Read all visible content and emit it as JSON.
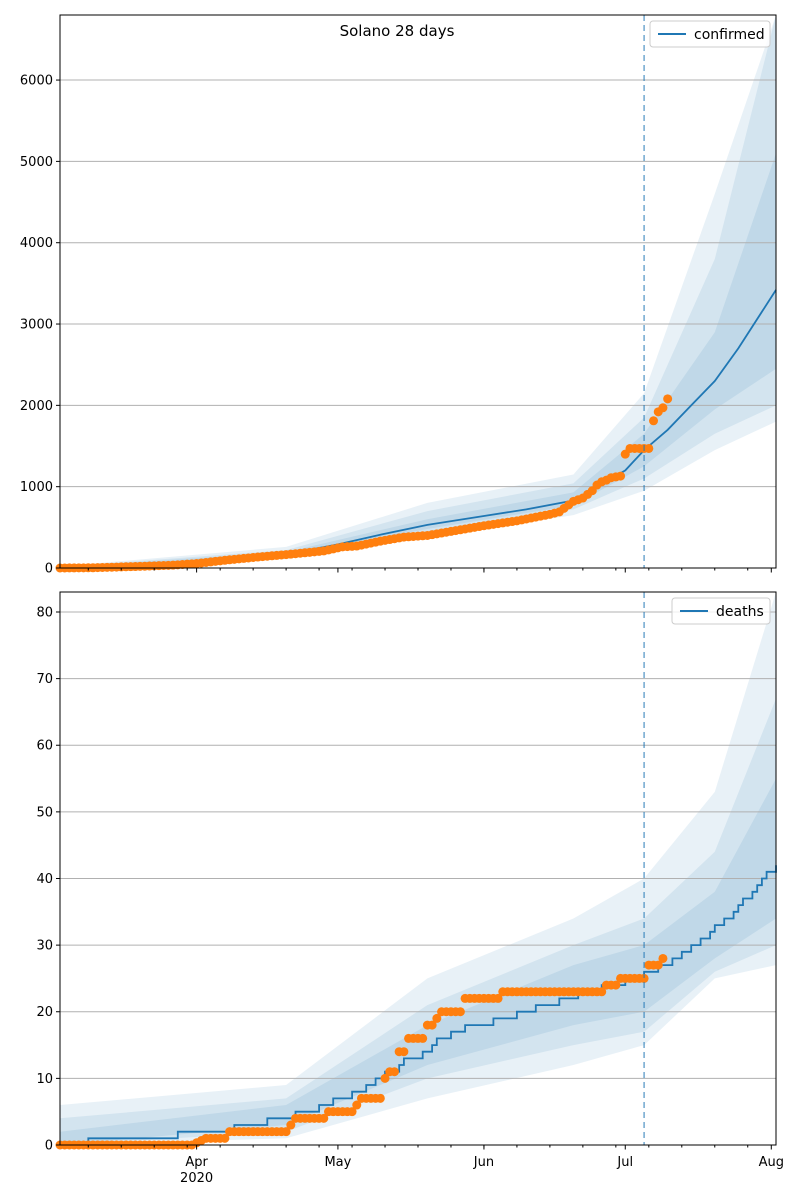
{
  "chart_data": [
    {
      "type": "line",
      "title": "Solano 28 days",
      "xlabel": "",
      "ylabel": "",
      "x_range": [
        "2020-03-03",
        "2020-08-02"
      ],
      "ylim": [
        0,
        6800
      ],
      "y_ticks": [
        0,
        1000,
        2000,
        3000,
        4000,
        5000,
        6000
      ],
      "x_ticks": [
        {
          "date": "2020-04-01",
          "label": "Apr",
          "sub": "2020"
        },
        {
          "date": "2020-05-01",
          "label": "May",
          "sub": ""
        },
        {
          "date": "2020-06-01",
          "label": "Jun",
          "sub": ""
        },
        {
          "date": "2020-07-01",
          "label": "Jul",
          "sub": ""
        },
        {
          "date": "2020-08-01",
          "label": "Aug",
          "sub": ""
        }
      ],
      "grid": "horizontal",
      "legend_position": "top-right",
      "forecast_start": "2020-07-05",
      "series": [
        {
          "name": "confirmed",
          "kind": "model-median",
          "color": "#1f77b4",
          "points": [
            [
              "2020-03-03",
              5
            ],
            [
              "2020-03-15",
              12
            ],
            [
              "2020-03-25",
              30
            ],
            [
              "2020-04-01",
              60
            ],
            [
              "2020-04-10",
              110
            ],
            [
              "2020-04-20",
              170
            ],
            [
              "2020-05-01",
              290
            ],
            [
              "2020-05-10",
              410
            ],
            [
              "2020-05-20",
              530
            ],
            [
              "2020-06-01",
              640
            ],
            [
              "2020-06-10",
              720
            ],
            [
              "2020-06-20",
              830
            ],
            [
              "2020-07-01",
              1200
            ],
            [
              "2020-07-05",
              1450
            ],
            [
              "2020-07-10",
              1700
            ],
            [
              "2020-07-15",
              2000
            ],
            [
              "2020-07-20",
              2300
            ],
            [
              "2020-07-25",
              2700
            ],
            [
              "2020-08-02",
              3420
            ]
          ]
        },
        {
          "name": "",
          "kind": "observed",
          "color": "#ff7f0e",
          "points": [
            [
              "2020-03-03",
              0
            ],
            [
              "2020-03-10",
              3
            ],
            [
              "2020-03-20",
              20
            ],
            [
              "2020-03-27",
              35
            ],
            [
              "2020-04-01",
              55
            ],
            [
              "2020-04-07",
              95
            ],
            [
              "2020-04-14",
              135
            ],
            [
              "2020-04-21",
              170
            ],
            [
              "2020-04-28",
              210
            ],
            [
              "2020-05-02",
              260
            ],
            [
              "2020-05-05",
              270
            ],
            [
              "2020-05-10",
              330
            ],
            [
              "2020-05-15",
              380
            ],
            [
              "2020-05-20",
              400
            ],
            [
              "2020-05-25",
              450
            ],
            [
              "2020-06-01",
              520
            ],
            [
              "2020-06-08",
              580
            ],
            [
              "2020-06-15",
              660
            ],
            [
              "2020-06-17",
              690
            ],
            [
              "2020-06-20",
              820
            ],
            [
              "2020-06-22",
              860
            ],
            [
              "2020-06-24",
              950
            ],
            [
              "2020-06-25",
              1020
            ],
            [
              "2020-06-26",
              1060
            ],
            [
              "2020-06-27",
              1080
            ],
            [
              "2020-06-28",
              1110
            ],
            [
              "2020-06-30",
              1130
            ],
            [
              "2020-07-01",
              1400
            ],
            [
              "2020-07-02",
              1470
            ],
            [
              "2020-07-03",
              1470
            ],
            [
              "2020-07-04",
              1470
            ],
            [
              "2020-07-05",
              1470
            ],
            [
              "2020-07-06",
              1470
            ],
            [
              "2020-07-07",
              1810
            ],
            [
              "2020-07-08",
              1920
            ],
            [
              "2020-07-09",
              1970
            ],
            [
              "2020-07-10",
              2080
            ]
          ]
        }
      ],
      "bands": [
        {
          "opacity": 0.1,
          "lower": [
            [
              "2020-03-03",
              0
            ],
            [
              "2020-04-20",
              110
            ],
            [
              "2020-05-20",
              380
            ],
            [
              "2020-06-20",
              650
            ],
            [
              "2020-07-05",
              950
            ],
            [
              "2020-07-20",
              1450
            ],
            [
              "2020-08-02",
              1800
            ]
          ],
          "upper": [
            [
              "2020-03-03",
              20
            ],
            [
              "2020-04-20",
              260
            ],
            [
              "2020-05-20",
              800
            ],
            [
              "2020-06-20",
              1150
            ],
            [
              "2020-07-05",
              2150
            ],
            [
              "2020-07-20",
              4600
            ],
            [
              "2020-08-02",
              6900
            ]
          ]
        },
        {
          "opacity": 0.1,
          "lower": [
            [
              "2020-03-03",
              0
            ],
            [
              "2020-04-20",
              130
            ],
            [
              "2020-05-20",
              430
            ],
            [
              "2020-06-20",
              720
            ],
            [
              "2020-07-05",
              1100
            ],
            [
              "2020-07-20",
              1650
            ],
            [
              "2020-08-02",
              2000
            ]
          ],
          "upper": [
            [
              "2020-03-03",
              15
            ],
            [
              "2020-04-20",
              220
            ],
            [
              "2020-05-20",
              700
            ],
            [
              "2020-06-20",
              1040
            ],
            [
              "2020-07-05",
              1850
            ],
            [
              "2020-07-20",
              3800
            ],
            [
              "2020-08-02",
              6900
            ]
          ]
        },
        {
          "opacity": 0.1,
          "lower": [
            [
              "2020-03-03",
              0
            ],
            [
              "2020-04-20",
              150
            ],
            [
              "2020-05-20",
              480
            ],
            [
              "2020-06-20",
              770
            ],
            [
              "2020-07-05",
              1250
            ],
            [
              "2020-07-20",
              1950
            ],
            [
              "2020-08-02",
              2450
            ]
          ],
          "upper": [
            [
              "2020-03-03",
              10
            ],
            [
              "2020-04-20",
              195
            ],
            [
              "2020-05-20",
              600
            ],
            [
              "2020-06-20",
              930
            ],
            [
              "2020-07-05",
              1650
            ],
            [
              "2020-07-20",
              2900
            ],
            [
              "2020-08-02",
              5100
            ]
          ]
        }
      ]
    },
    {
      "type": "line",
      "title": "",
      "xlabel": "",
      "ylabel": "",
      "x_range": [
        "2020-03-03",
        "2020-08-02"
      ],
      "ylim": [
        0,
        83
      ],
      "y_ticks": [
        0,
        10,
        20,
        30,
        40,
        50,
        60,
        70,
        80
      ],
      "x_ticks": [
        {
          "date": "2020-04-01",
          "label": "Apr",
          "sub": "2020"
        },
        {
          "date": "2020-05-01",
          "label": "May",
          "sub": ""
        },
        {
          "date": "2020-06-01",
          "label": "Jun",
          "sub": ""
        },
        {
          "date": "2020-07-01",
          "label": "Jul",
          "sub": ""
        },
        {
          "date": "2020-08-01",
          "label": "Aug",
          "sub": ""
        }
      ],
      "grid": "horizontal",
      "legend_position": "top-right",
      "forecast_start": "2020-07-05",
      "series": [
        {
          "name": "deaths",
          "kind": "model-median",
          "color": "#1f77b4",
          "step": true,
          "points": [
            [
              "2020-03-03",
              0
            ],
            [
              "2020-03-09",
              1
            ],
            [
              "2020-03-28",
              2
            ],
            [
              "2020-04-09",
              3
            ],
            [
              "2020-04-16",
              4
            ],
            [
              "2020-04-22",
              5
            ],
            [
              "2020-04-27",
              6
            ],
            [
              "2020-04-30",
              7
            ],
            [
              "2020-05-04",
              8
            ],
            [
              "2020-05-07",
              9
            ],
            [
              "2020-05-09",
              10
            ],
            [
              "2020-05-11",
              11
            ],
            [
              "2020-05-14",
              12
            ],
            [
              "2020-05-15",
              13
            ],
            [
              "2020-05-19",
              14
            ],
            [
              "2020-05-21",
              15
            ],
            [
              "2020-05-22",
              16
            ],
            [
              "2020-05-25",
              17
            ],
            [
              "2020-05-28",
              18
            ],
            [
              "2020-06-03",
              19
            ],
            [
              "2020-06-08",
              20
            ],
            [
              "2020-06-12",
              21
            ],
            [
              "2020-06-17",
              22
            ],
            [
              "2020-06-21",
              23
            ],
            [
              "2020-06-26",
              24
            ],
            [
              "2020-07-01",
              25
            ],
            [
              "2020-07-05",
              26
            ],
            [
              "2020-07-08",
              27
            ],
            [
              "2020-07-11",
              28
            ],
            [
              "2020-07-13",
              29
            ],
            [
              "2020-07-15",
              30
            ],
            [
              "2020-07-17",
              31
            ],
            [
              "2020-07-19",
              32
            ],
            [
              "2020-07-20",
              33
            ],
            [
              "2020-07-22",
              34
            ],
            [
              "2020-07-24",
              35
            ],
            [
              "2020-07-25",
              36
            ],
            [
              "2020-07-26",
              37
            ],
            [
              "2020-07-28",
              38
            ],
            [
              "2020-07-29",
              39
            ],
            [
              "2020-07-30",
              40
            ],
            [
              "2020-07-31",
              41
            ],
            [
              "2020-08-02",
              42
            ]
          ]
        },
        {
          "name": "",
          "kind": "observed",
          "color": "#ff7f0e",
          "points": [
            [
              "2020-03-03",
              0
            ],
            [
              "2020-03-20",
              0
            ],
            [
              "2020-03-31",
              0
            ],
            [
              "2020-04-03",
              1
            ],
            [
              "2020-04-07",
              1
            ],
            [
              "2020-04-08",
              2
            ],
            [
              "2020-04-20",
              2
            ],
            [
              "2020-04-21",
              3
            ],
            [
              "2020-04-22",
              4
            ],
            [
              "2020-04-28",
              4
            ],
            [
              "2020-04-29",
              5
            ],
            [
              "2020-05-04",
              5
            ],
            [
              "2020-05-05",
              6
            ],
            [
              "2020-05-06",
              7
            ],
            [
              "2020-05-10",
              7
            ],
            [
              "2020-05-11",
              10
            ],
            [
              "2020-05-12",
              11
            ],
            [
              "2020-05-13",
              11
            ],
            [
              "2020-05-14",
              14
            ],
            [
              "2020-05-15",
              14
            ],
            [
              "2020-05-16",
              16
            ],
            [
              "2020-05-19",
              16
            ],
            [
              "2020-05-20",
              18
            ],
            [
              "2020-05-21",
              18
            ],
            [
              "2020-05-22",
              19
            ],
            [
              "2020-05-23",
              20
            ],
            [
              "2020-05-27",
              20
            ],
            [
              "2020-05-28",
              22
            ],
            [
              "2020-06-04",
              22
            ],
            [
              "2020-06-05",
              23
            ],
            [
              "2020-06-26",
              23
            ],
            [
              "2020-06-27",
              24
            ],
            [
              "2020-06-29",
              24
            ],
            [
              "2020-06-30",
              25
            ],
            [
              "2020-07-05",
              25
            ],
            [
              "2020-07-06",
              27
            ],
            [
              "2020-07-08",
              27
            ],
            [
              "2020-07-09",
              28
            ]
          ]
        }
      ],
      "bands": [
        {
          "opacity": 0.1,
          "lower": [
            [
              "2020-03-03",
              0
            ],
            [
              "2020-04-20",
              1
            ],
            [
              "2020-05-20",
              7
            ],
            [
              "2020-06-20",
              12
            ],
            [
              "2020-07-05",
              15
            ],
            [
              "2020-07-20",
              25
            ],
            [
              "2020-08-02",
              27
            ]
          ],
          "upper": [
            [
              "2020-03-03",
              6
            ],
            [
              "2020-04-20",
              9
            ],
            [
              "2020-05-20",
              25
            ],
            [
              "2020-06-20",
              34
            ],
            [
              "2020-07-05",
              40
            ],
            [
              "2020-07-20",
              53
            ],
            [
              "2020-08-02",
              83
            ]
          ]
        },
        {
          "opacity": 0.1,
          "lower": [
            [
              "2020-03-03",
              0
            ],
            [
              "2020-04-20",
              2
            ],
            [
              "2020-05-20",
              10
            ],
            [
              "2020-06-20",
              15
            ],
            [
              "2020-07-05",
              17
            ],
            [
              "2020-07-20",
              26
            ],
            [
              "2020-08-02",
              30
            ]
          ],
          "upper": [
            [
              "2020-03-03",
              4
            ],
            [
              "2020-04-20",
              7
            ],
            [
              "2020-05-20",
              21
            ],
            [
              "2020-06-20",
              30
            ],
            [
              "2020-07-05",
              34
            ],
            [
              "2020-07-20",
              44
            ],
            [
              "2020-08-02",
              67
            ]
          ]
        },
        {
          "opacity": 0.1,
          "lower": [
            [
              "2020-03-03",
              0
            ],
            [
              "2020-04-20",
              3
            ],
            [
              "2020-05-20",
              12
            ],
            [
              "2020-06-20",
              18
            ],
            [
              "2020-07-05",
              20
            ],
            [
              "2020-07-20",
              28
            ],
            [
              "2020-08-02",
              34
            ]
          ],
          "upper": [
            [
              "2020-03-03",
              2
            ],
            [
              "2020-04-20",
              6
            ],
            [
              "2020-05-20",
              18
            ],
            [
              "2020-06-20",
              27
            ],
            [
              "2020-07-05",
              30
            ],
            [
              "2020-07-20",
              38
            ],
            [
              "2020-08-02",
              55
            ]
          ]
        }
      ]
    }
  ]
}
